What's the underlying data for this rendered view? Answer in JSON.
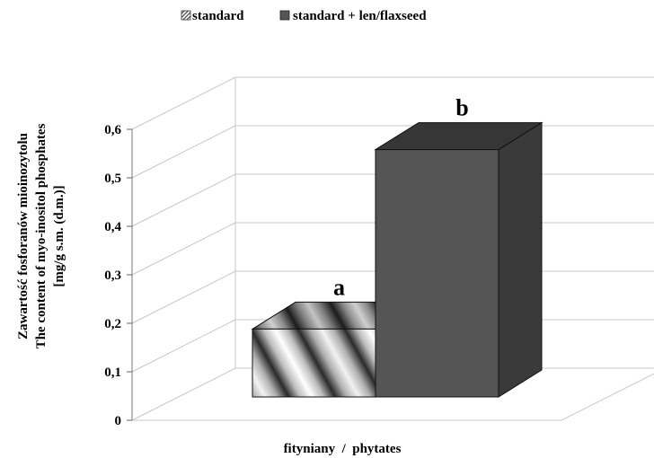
{
  "chart_data": {
    "type": "bar",
    "categories": [
      "fityniany / phytates"
    ],
    "series": [
      {
        "name": "standard",
        "values": [
          0.14
        ],
        "annotation": "a",
        "fill": "wave-pattern"
      },
      {
        "name": "standard + len/flaxseed",
        "values": [
          0.51
        ],
        "annotation": "b",
        "color": "#555555"
      }
    ],
    "xlabel": "fityniany  /  phytates",
    "ylabel": [
      "Zawartość fosforanów mioinozytolu",
      "The content of myo-inositol phosphates",
      "[mg/g s.m. (d.m.)]"
    ],
    "ylim": [
      0,
      0.6
    ],
    "yticks": [
      "0",
      "0,1",
      "0,2",
      "0,3",
      "0,4",
      "0,5",
      "0,6"
    ],
    "grid": true,
    "legend_position": "top",
    "style": "3d"
  }
}
